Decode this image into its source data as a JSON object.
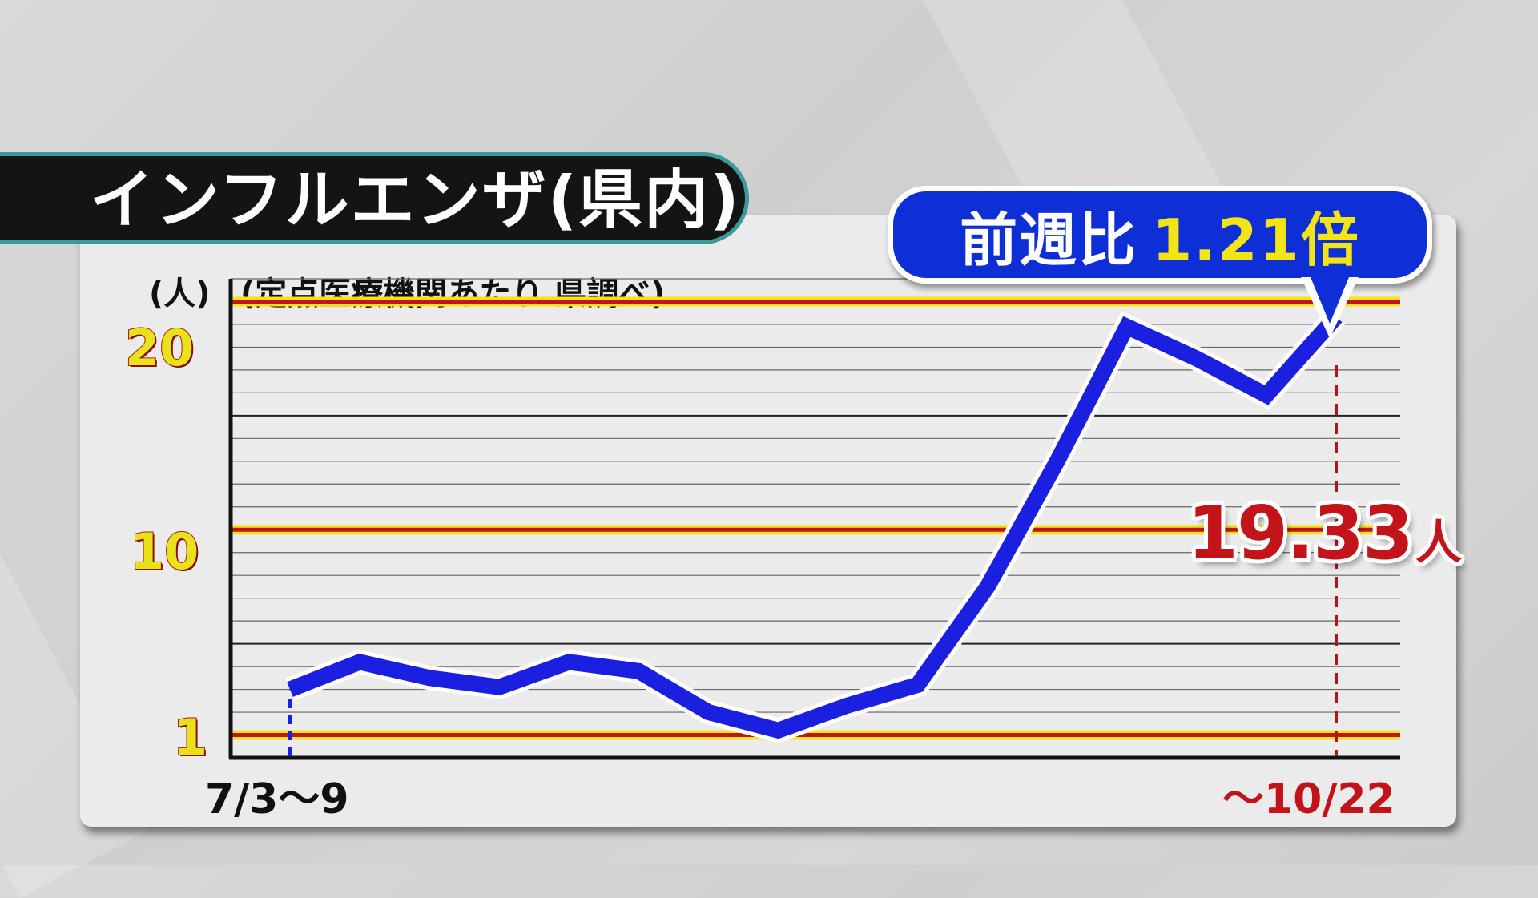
{
  "title": "インフルエンザ(県内)",
  "ratio_badge": {
    "label": "前週比",
    "value": "1.21倍"
  },
  "y_unit": "(人)",
  "source": "(定点医療機関あたり 県調べ)",
  "y_ticks": [
    "20",
    "10",
    "1"
  ],
  "x_start_label": "7/3〜9",
  "x_end_label": "〜10/22",
  "callout": {
    "value": "19.33",
    "unit": "人"
  },
  "colors": {
    "line": "#1a1fe0",
    "reference_lines": "#c0141a",
    "reference_highlight": "#f3e416",
    "badge": "#0f2fd6",
    "callout": "#c31419"
  },
  "chart_data": {
    "type": "line",
    "title": "インフルエンザ(県内)",
    "ylabel": "(人)",
    "xlabel": "",
    "x_labels_shown": [
      "7/3〜9",
      "〜10/22"
    ],
    "ylim": [
      0,
      21
    ],
    "reference_lines": [
      1,
      10,
      20
    ],
    "grid": true,
    "series": [
      {
        "values": [
          3.0,
          4.2,
          3.5,
          3.1,
          4.2,
          3.8,
          2.0,
          1.2,
          2.3,
          3.2,
          7.5,
          13.0,
          18.9,
          17.5,
          15.9,
          19.33
        ]
      }
    ],
    "annotations": [
      "19.33人",
      "前週比1.21倍"
    ]
  }
}
